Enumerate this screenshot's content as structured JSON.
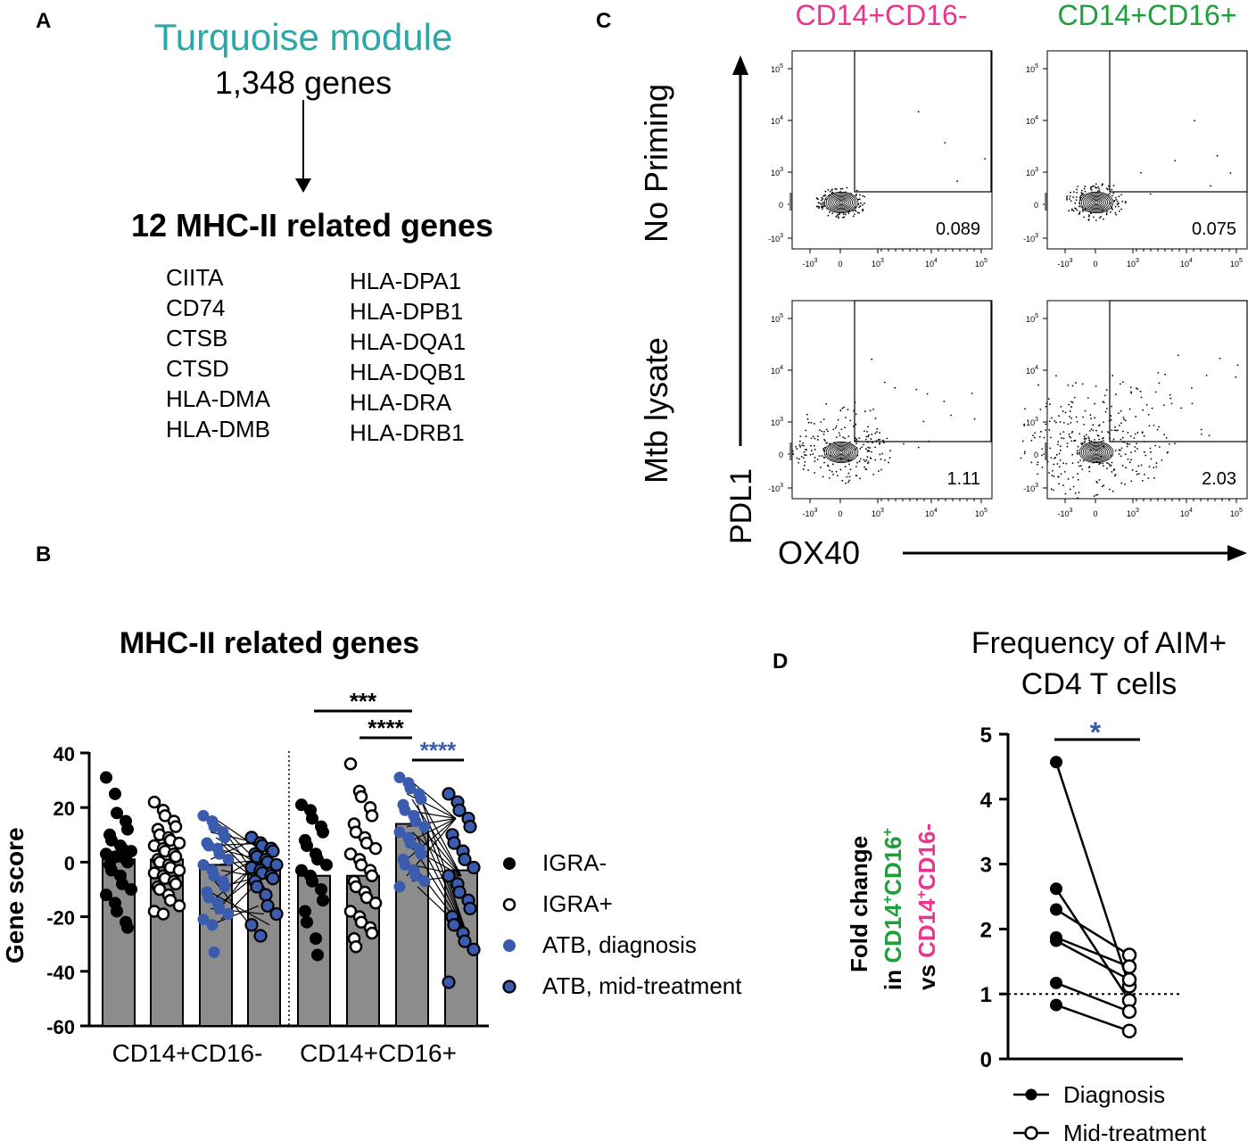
{
  "panel_labels": {
    "a": "A",
    "b": "B",
    "c": "C",
    "d": "D"
  },
  "panel_a": {
    "title": "Turquoise module",
    "subtitle": "1,348 genes",
    "heading": "12 MHC-II related genes",
    "genes_left": [
      "CIITA",
      "CD74",
      "CTSB",
      "CTSD",
      "HLA-DMA",
      "HLA-DMB"
    ],
    "genes_right": [
      "HLA-DPA1",
      "HLA-DPB1",
      "HLA-DQA1",
      "HLA-DQB1",
      "HLA-DRA",
      "HLA-DRB1"
    ],
    "title_color": "#2aa8a8"
  },
  "panel_c": {
    "col_labels": [
      "CD14+CD16-",
      "CD14+CD16+"
    ],
    "col_colors": [
      "#e8368f",
      "#1f9e3c"
    ],
    "row_labels": [
      "No Priming",
      "Mtb lysate"
    ],
    "y_axis_label": "PDL1",
    "x_axis_label": "OX40",
    "gate_values": [
      "0.089",
      "0.075",
      "1.11",
      "2.03"
    ],
    "y_ticks": [
      "10",
      "10",
      "10",
      "0",
      "-10"
    ],
    "y_tick_exps": [
      "5",
      "4",
      "3",
      "",
      "3"
    ],
    "x_ticks": [
      "-10",
      "0",
      "10",
      "10",
      "10"
    ],
    "x_tick_exps": [
      "3",
      "",
      "3",
      "4",
      "5"
    ]
  },
  "chart_data": [
    {
      "type": "bar",
      "title": "MHC-II related genes",
      "ylabel": "Gene score",
      "xlabel": "",
      "ylim": [
        -60,
        40
      ],
      "yticks": [
        40,
        20,
        0,
        -20,
        -40,
        -60
      ],
      "ytick_labels": [
        "40",
        "20",
        "0",
        "-20",
        "-40",
        "-60"
      ],
      "groups": [
        "CD14+CD16-",
        "CD14+CD16+"
      ],
      "series": [
        {
          "name": "IGRA-",
          "values": [
            1,
            -5
          ]
        },
        {
          "name": "IGRA+",
          "values": [
            1,
            -5
          ]
        },
        {
          "name": "ATB, diagnosis",
          "values": [
            -1,
            14
          ]
        },
        {
          "name": "ATB, mid-treatment",
          "values": [
            -1,
            -3
          ]
        }
      ],
      "significance": [
        {
          "label": "***",
          "from": "IGRA-",
          "to": "ATB, diagnosis",
          "group": "CD14+CD16+"
        },
        {
          "label": "****",
          "from": "IGRA+",
          "to": "ATB, diagnosis",
          "group": "CD14+CD16+"
        },
        {
          "label": "****",
          "from": "ATB, diagnosis",
          "to": "ATB, mid-treatment",
          "group": "CD14+CD16+"
        }
      ],
      "legend": [
        "IGRA-",
        "IGRA+",
        "ATB, diagnosis",
        "ATB, mid-treatment"
      ],
      "legend_position": "right",
      "points": {
        "cd16neg_igraneg": [
          31,
          25,
          18,
          15,
          12,
          10,
          8,
          6,
          5,
          4,
          3,
          2,
          2,
          1,
          0,
          -1,
          -3,
          -5,
          -8,
          -10,
          -12,
          -15,
          -18,
          -22,
          -24
        ],
        "cd16neg_igrapos": [
          22,
          19,
          17,
          15,
          13,
          12,
          10,
          9,
          8,
          7,
          6,
          5,
          4,
          3,
          2,
          1,
          0,
          -1,
          -2,
          -3,
          -4,
          -5,
          -6,
          -7,
          -8,
          -9,
          -10,
          -12,
          -14,
          -16,
          -18,
          -19
        ],
        "cd16neg_atbdx": [
          17,
          15,
          13,
          11,
          9,
          7,
          6,
          5,
          3,
          1,
          -1,
          -3,
          -5,
          -7,
          -9,
          -11,
          -13,
          -15,
          -17,
          -19,
          -21,
          -23,
          -33
        ],
        "cd16neg_atbmid": [
          9,
          7,
          6,
          5,
          4,
          3,
          2,
          1,
          0,
          -1,
          -2,
          -3,
          -4,
          -5,
          -6,
          -7,
          -9,
          -12,
          -16,
          -19,
          -23,
          -27
        ],
        "cd16pos_igraneg": [
          21,
          19,
          16,
          13,
          11,
          8,
          6,
          3,
          1,
          -1,
          -3,
          -5,
          -7,
          -10,
          -14,
          -18,
          -22,
          -28,
          -34
        ],
        "cd16pos_igrapos": [
          36,
          26,
          24,
          20,
          17,
          14,
          11,
          9,
          7,
          5,
          3,
          1,
          -1,
          -3,
          -5,
          -7,
          -9,
          -11,
          -13,
          -15,
          -18,
          -20,
          -22,
          -24,
          -26,
          -28,
          -31
        ],
        "cd16pos_atbdx": [
          31,
          29,
          27,
          25,
          23,
          21,
          19,
          17,
          15,
          13,
          11,
          9,
          7,
          5,
          3,
          1,
          -1,
          -3,
          -5,
          -7,
          -9
        ],
        "cd16pos_atbmid": [
          25,
          22,
          19,
          16,
          13,
          10,
          7,
          4,
          1,
          -2,
          -5,
          -8,
          -11,
          -14,
          -17,
          -20,
          -23,
          -26,
          -29,
          -32,
          -44
        ]
      }
    },
    {
      "type": "line",
      "title": "Frequency of AIM+ CD4 T cells",
      "ylabel_parts": [
        "Fold change",
        "in ",
        "CD14",
        "+",
        "CD16",
        "+",
        "vs ",
        "CD14",
        "+",
        "CD16-"
      ],
      "ylim": [
        0,
        5
      ],
      "yticks": [
        0,
        1,
        2,
        3,
        4,
        5
      ],
      "ytick_labels": [
        "0",
        "1",
        "2",
        "3",
        "4",
        "5"
      ],
      "reference_line": 1,
      "series": [
        {
          "name": "Diagnosis",
          "values": [
            4.57,
            2.62,
            2.3,
            1.87,
            1.82,
            1.17,
            0.83
          ]
        },
        {
          "name": "Mid-treatment",
          "values": [
            1.12,
            0.9,
            1.6,
            1.42,
            1.22,
            0.73,
            0.43
          ]
        }
      ],
      "significance": {
        "label": "*",
        "color": "#3b5cae"
      },
      "legend": [
        "Diagnosis",
        "Mid-treatment"
      ],
      "legend_position": "bottom"
    }
  ]
}
